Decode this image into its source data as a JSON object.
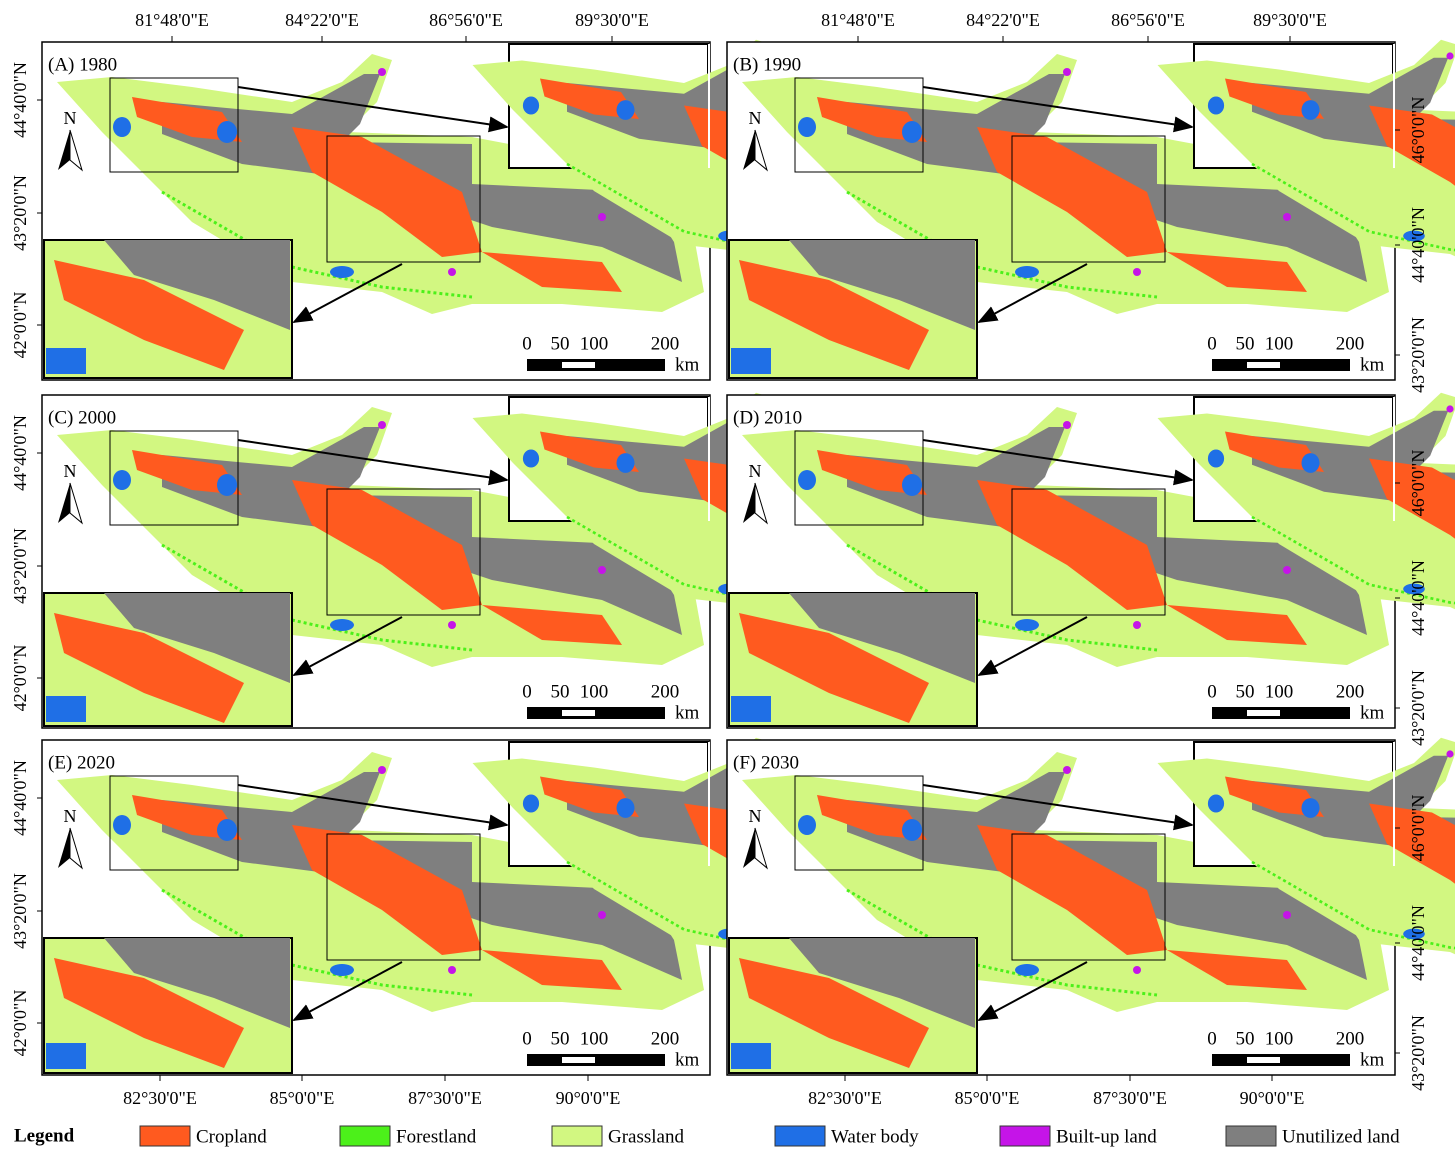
{
  "axes": {
    "top": [
      "81°48'0\"E",
      "84°22'0\"E",
      "86°56'0\"E",
      "89°30'0\"E"
    ],
    "bottom": [
      "82°30'0\"E",
      "85°0'0\"E",
      "87°30'0\"E",
      "90°0'0\"E"
    ],
    "left": [
      "44°40'0\"N",
      "43°20'0\"N",
      "42°0'0\"N"
    ],
    "right": [
      "46°0'0\"N",
      "44°40'0\"N",
      "43°20'0\"N"
    ]
  },
  "north": "N",
  "scale": {
    "ticks": [
      "0",
      "50",
      "100",
      "200"
    ],
    "unit": "km"
  },
  "panels": [
    {
      "label": "(A) 1980"
    },
    {
      "label": "(B) 1990"
    },
    {
      "label": "(C) 2000"
    },
    {
      "label": "(D) 2010"
    },
    {
      "label": "(E) 2020"
    },
    {
      "label": "(F) 2030"
    }
  ],
  "legend": {
    "title": "Legend",
    "items": [
      {
        "name": "Cropland",
        "color": "#ff5a1f"
      },
      {
        "name": "Forestland",
        "color": "#4cf01a"
      },
      {
        "name": "Grassland",
        "color": "#d2f781"
      },
      {
        "name": "Water body",
        "color": "#1f6fe6"
      },
      {
        "name": "Built-up land",
        "color": "#c514e8"
      },
      {
        "name": "Unutilized land",
        "color": "#7f7f7f"
      }
    ]
  }
}
